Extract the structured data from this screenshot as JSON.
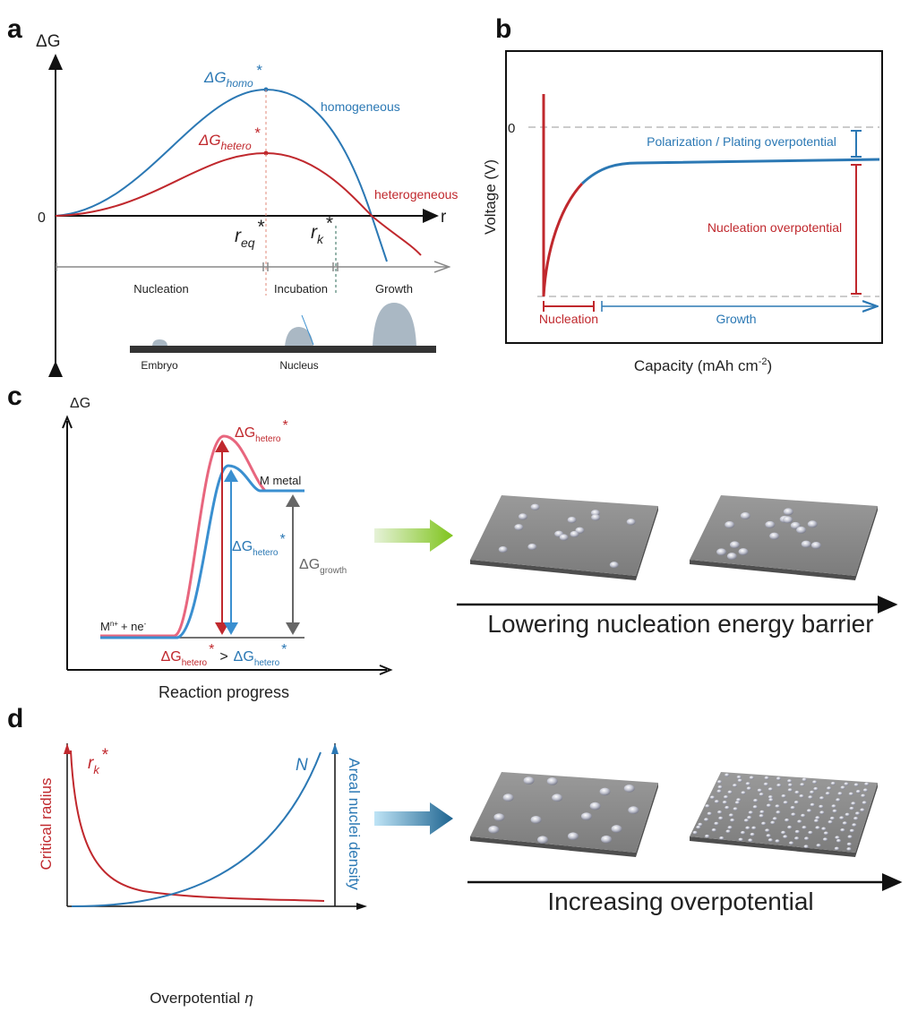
{
  "panel_a": {
    "label": "a",
    "y_axis": "ΔG",
    "x_axis": "r",
    "zero": "0",
    "homo_label": {
      "base": "ΔG",
      "sub": "homo",
      "sup": "*"
    },
    "hetero_label": {
      "base": "ΔG",
      "sub": "hetero",
      "sup": "*"
    },
    "homogeneous": "homogeneous",
    "heterogeneous": "heterogeneous",
    "r_eq": {
      "base": "r",
      "sub": "eq",
      "sup": "*"
    },
    "r_k": {
      "base": "r",
      "sub": "k",
      "sup": "*"
    },
    "stages": [
      "Nucleation",
      "Incubation",
      "Growth"
    ],
    "illustration": [
      "Embryo",
      "Nucleus"
    ]
  },
  "panel_b": {
    "label": "b",
    "y_axis": "Voltage (V)",
    "x_axis": {
      "base": "Capacity (mAh cm",
      "sup": "-2",
      "end": ")"
    },
    "zero": "0",
    "polarization": "Polarization / Plating overpotential",
    "nucleation_overpotential": "Nucleation overpotential",
    "nucleation": "Nucleation",
    "growth": "Growth"
  },
  "panel_c": {
    "label": "c",
    "y_axis": "ΔG",
    "x_axis": "Reaction progress",
    "metal": "M metal",
    "ion": {
      "base": "M",
      "sup1": "n+",
      "mid": "+ ne",
      "sup2": "-"
    },
    "hetero_red": {
      "base": "ΔG",
      "sub": "hetero",
      "sup": "*"
    },
    "hetero_blue": {
      "base": "ΔG",
      "sub": "hetero",
      "sup": "*"
    },
    "growth": {
      "base": "ΔG",
      "sub": "growth"
    },
    "comparison": {
      "lhs": {
        "base": "ΔG",
        "sub": "hetero",
        "sup": "*"
      },
      "op": ">",
      "rhs": {
        "base": "ΔG",
        "sub": "hetero",
        "sup": "*"
      }
    },
    "arrow_caption": "Lowering nucleation energy barrier"
  },
  "panel_d": {
    "label": "d",
    "y_left": "Critical radius",
    "y_right": "Areal nuclei density",
    "curve_r": {
      "base": "r",
      "sub": "k",
      "sup": "*"
    },
    "curve_n": "N",
    "x_axis": {
      "text": "Overpotential",
      "symbol": "η"
    },
    "arrow_caption": "Increasing overpotential"
  }
}
